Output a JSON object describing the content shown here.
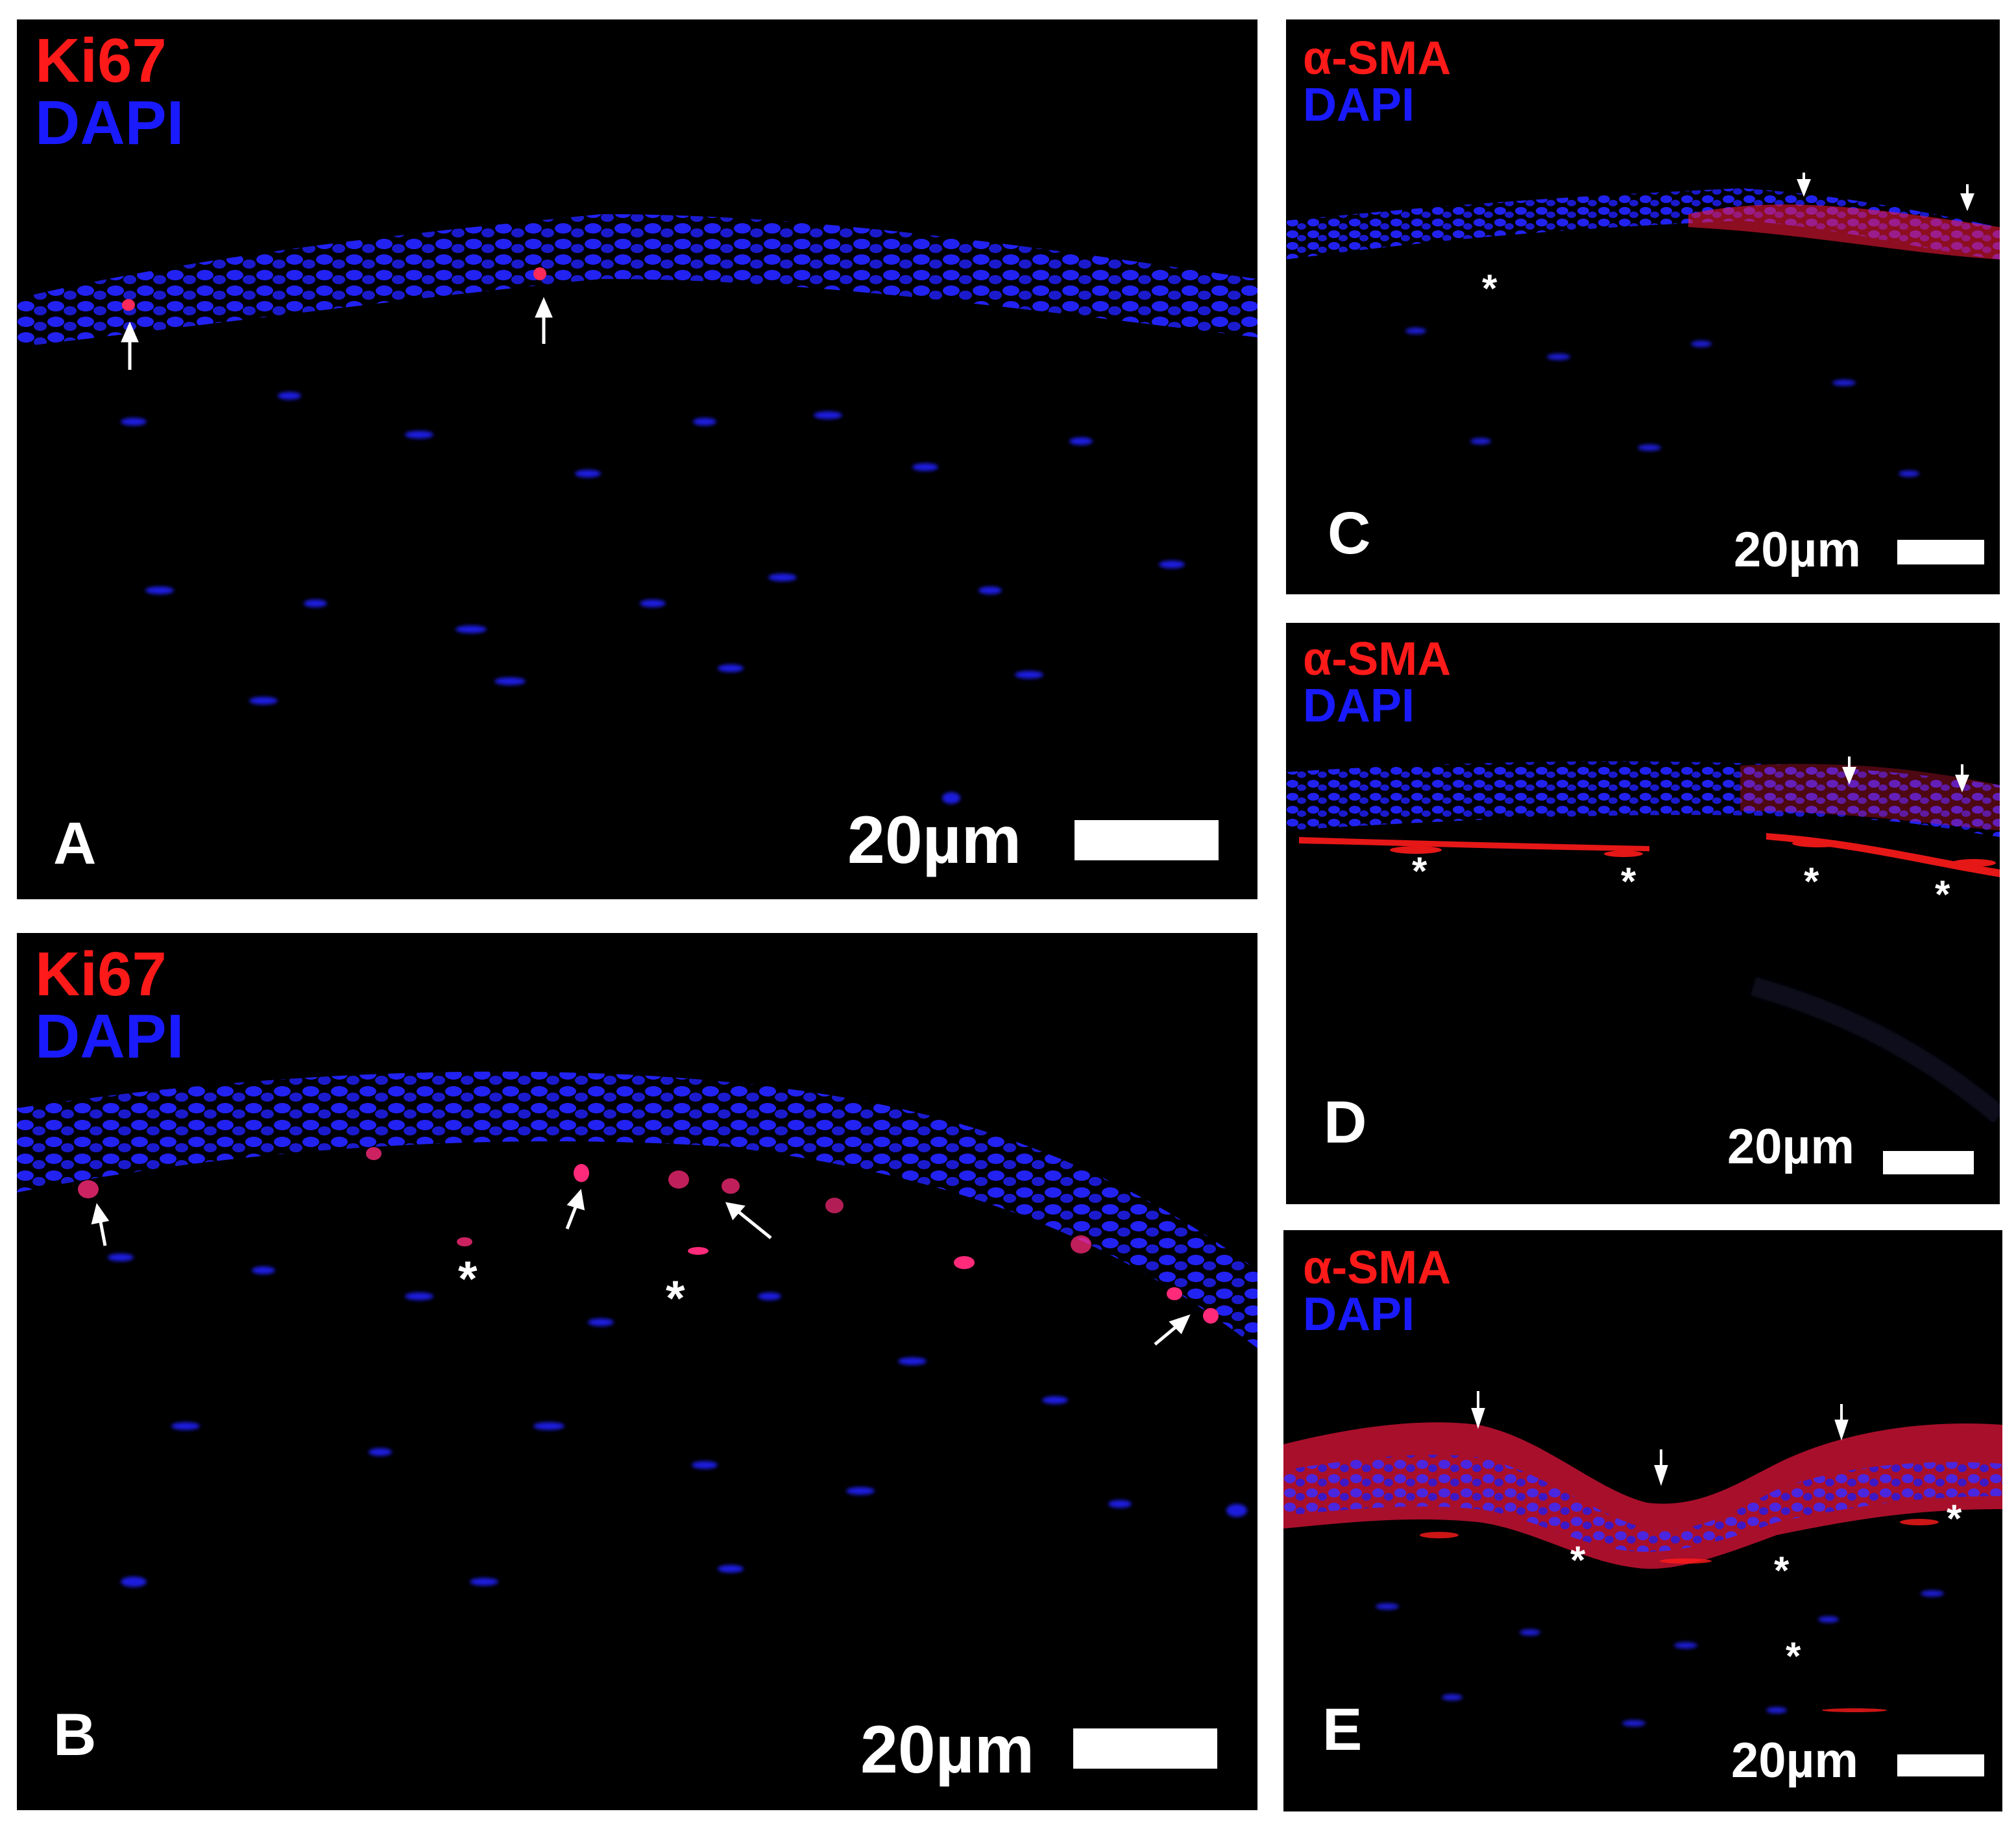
{
  "colors": {
    "ki67": "#ff1a1a",
    "asma": "#ff1a1a",
    "dapi": "#1a1aff",
    "background": "#000000",
    "annotation": "#ffffff"
  },
  "panels": {
    "A": {
      "letter": "A",
      "marker": "Ki67",
      "counterstain": "DAPI",
      "scale_label": "20µm"
    },
    "B": {
      "letter": "B",
      "marker": "Ki67",
      "counterstain": "DAPI",
      "scale_label": "20µm"
    },
    "C": {
      "letter": "C",
      "marker": "α-SMA",
      "counterstain": "DAPI",
      "scale_label": "20µm"
    },
    "D": {
      "letter": "D",
      "marker": "α-SMA",
      "counterstain": "DAPI",
      "scale_label": "20µm"
    },
    "E": {
      "letter": "E",
      "marker": "α-SMA",
      "counterstain": "DAPI",
      "scale_label": "20µm"
    }
  },
  "annotations": {
    "asterisk": "*"
  }
}
